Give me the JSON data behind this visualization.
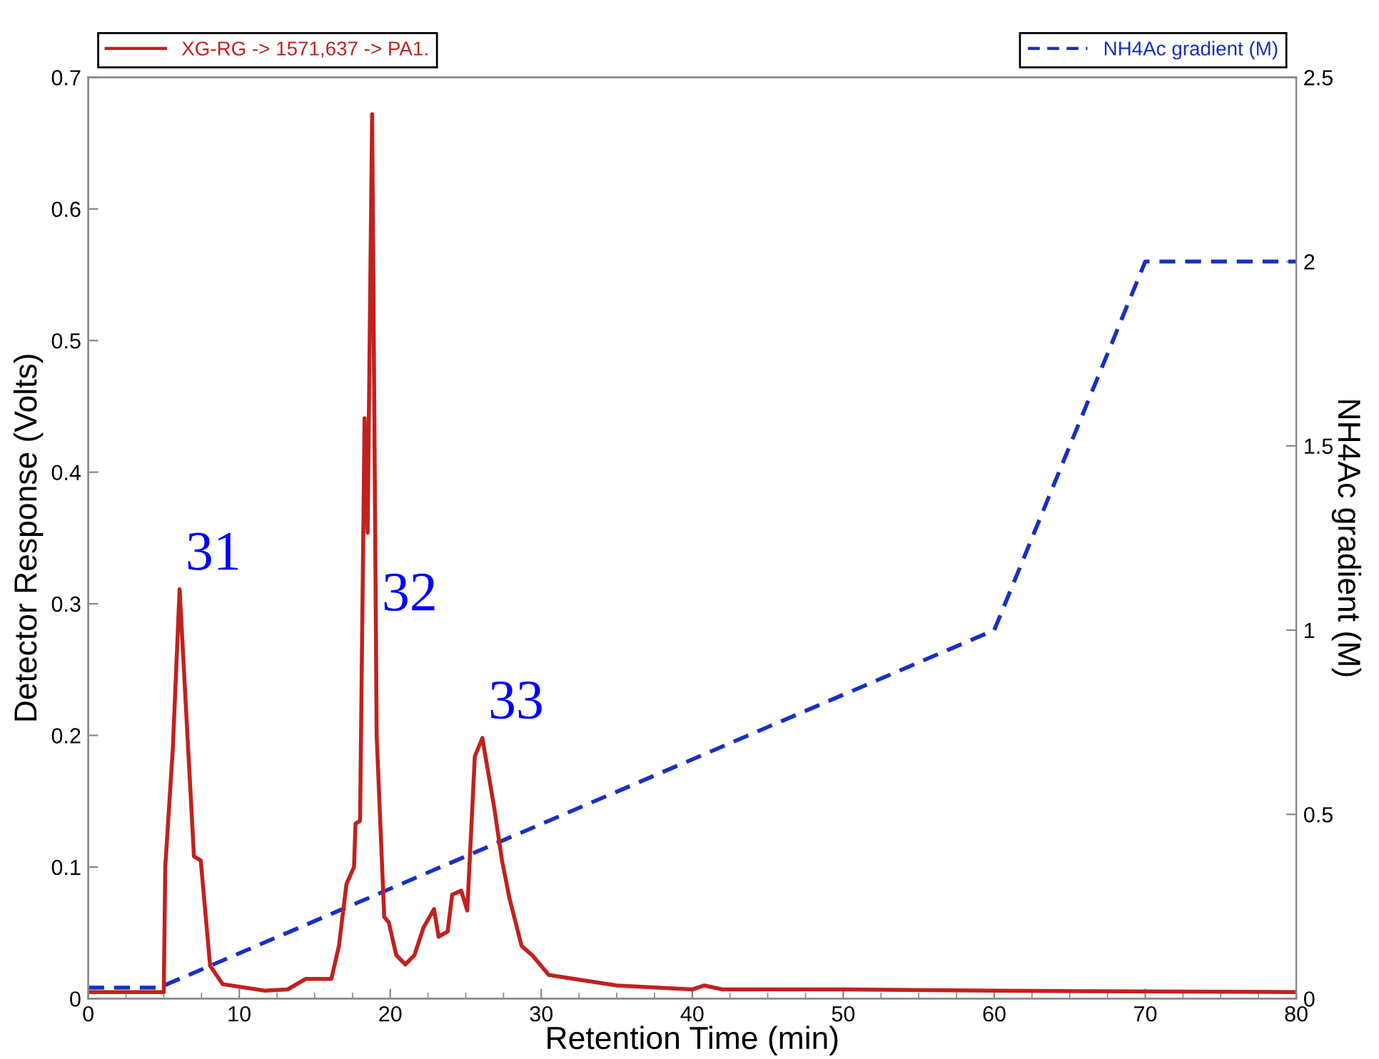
{
  "chart_data": {
    "type": "line",
    "xlabel": "Retention Time (min)",
    "ylabel": "Detector Response (Volts)",
    "y2label": "NH4Ac gradient (M)",
    "xlim": [
      0,
      80
    ],
    "xticks": [
      0,
      10,
      20,
      30,
      40,
      50,
      60,
      70,
      80
    ],
    "ylim": [
      0,
      0.7
    ],
    "yticks": [
      0,
      0.1,
      0.2,
      0.3,
      0.4,
      0.5,
      0.6,
      0.7
    ],
    "y2lim": [
      0,
      2.5
    ],
    "y2ticks": [
      0,
      0.5,
      1,
      1.5,
      2,
      2.5
    ],
    "grid": false,
    "legend": "top",
    "marker": "none",
    "series": [
      {
        "name": "XG-RG -> 1571,637 -> PA1.",
        "color": "#c0221f",
        "line_style": "solid",
        "x": [
          0,
          5.0,
          5.1,
          5.6,
          6.05,
          7.0,
          7.45,
          8.07,
          8.9,
          11.7,
          13.2,
          14.4,
          16.1,
          16.6,
          17.1,
          17.6,
          17.7,
          18.0,
          18.3,
          18.5,
          18.8,
          19.1,
          19.6,
          19.9,
          20.4,
          21.0,
          21.6,
          22.2,
          22.9,
          23.2,
          23.8,
          24.1,
          24.7,
          25.1,
          25.6,
          26.1,
          26.9,
          27.4,
          27.9,
          28.7,
          29.4,
          30.5,
          35,
          40,
          40.8,
          42,
          50,
          60,
          80
        ],
        "values": [
          0.005,
          0.005,
          0.1,
          0.19,
          0.311,
          0.108,
          0.105,
          0.025,
          0.011,
          0.006,
          0.007,
          0.015,
          0.015,
          0.04,
          0.087,
          0.1,
          0.133,
          0.135,
          0.441,
          0.354,
          0.672,
          0.2,
          0.062,
          0.058,
          0.033,
          0.026,
          0.033,
          0.054,
          0.068,
          0.047,
          0.051,
          0.079,
          0.082,
          0.067,
          0.184,
          0.198,
          0.144,
          0.105,
          0.076,
          0.04,
          0.033,
          0.018,
          0.01,
          0.007,
          0.01,
          0.007,
          0.007,
          0.006,
          0.005
        ]
      },
      {
        "name": "NH4Ac gradient (M)",
        "color": "#1a2fbf",
        "line_style": "dashed",
        "axis": "y2",
        "x": [
          0,
          4.7,
          60,
          70,
          80
        ],
        "values": [
          0.03,
          0.03,
          1,
          2,
          2
        ]
      }
    ],
    "annotations": [
      {
        "text": "31",
        "x": 6.05,
        "y": 0.311
      },
      {
        "text": "32",
        "x": 19.05,
        "y": 0.28
      },
      {
        "text": "33",
        "x": 26.1,
        "y": 0.198
      }
    ]
  }
}
